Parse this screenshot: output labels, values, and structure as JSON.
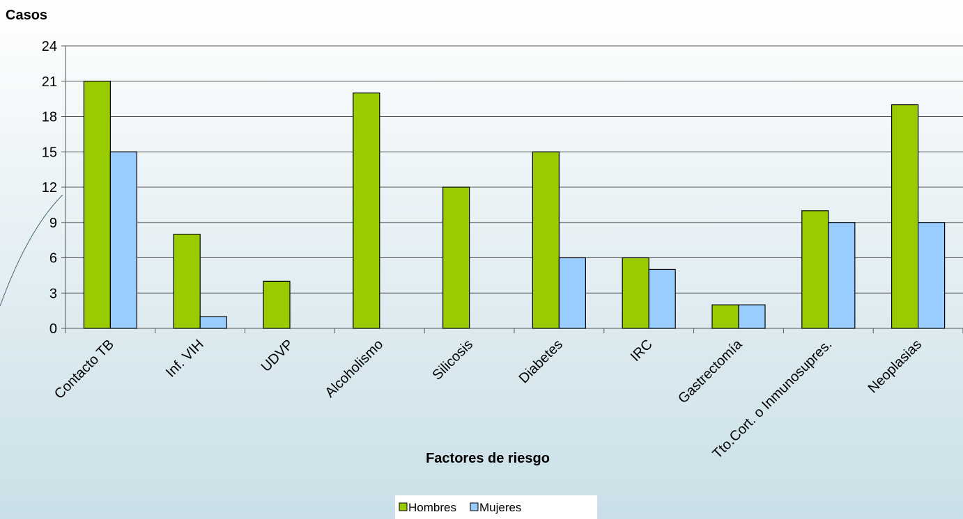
{
  "chart_data": {
    "type": "bar",
    "title": "Casos",
    "x_label": "Factores de riesgo",
    "categories": [
      "Contacto TB",
      "Inf. VIH",
      "UDVP",
      "Alcoholismo",
      "Silicosis",
      "Diabetes",
      "IRC",
      "Gastrectomía",
      "Tto.Cort. o Inmunosupres.",
      "Neoplasias"
    ],
    "series": [
      {
        "name": "Hombres",
        "color": "#99cc00",
        "values": [
          21,
          8,
          4,
          20,
          12,
          15,
          6,
          2,
          10,
          19
        ]
      },
      {
        "name": "Mujeres",
        "color": "#99ccff",
        "values": [
          15,
          1,
          0,
          0,
          0,
          6,
          5,
          2,
          9,
          9
        ]
      }
    ],
    "ylim": [
      0,
      24
    ],
    "yticks": [
      0,
      3,
      6,
      9,
      12,
      15,
      18,
      21,
      24
    ],
    "grid": true,
    "legend": "bottom"
  }
}
